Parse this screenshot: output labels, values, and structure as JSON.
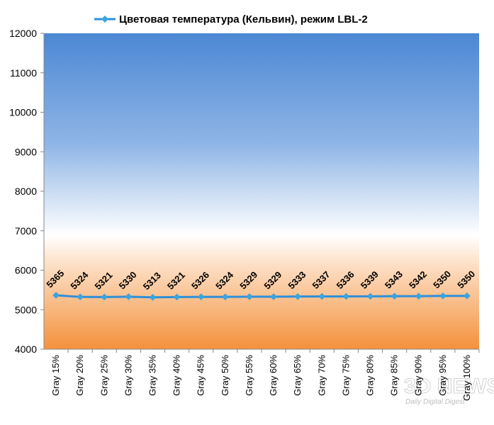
{
  "chart_data": {
    "type": "line",
    "categories": [
      "Gray 15%",
      "Gray 20%",
      "Gray 25%",
      "Gray 30%",
      "Gray 35%",
      "Gray 40%",
      "Gray 45%",
      "Gray 50%",
      "Gray 55%",
      "Gray 60%",
      "Gray 65%",
      "Gray 70%",
      "Gray 75%",
      "Gray 80%",
      "Gray 85%",
      "Gray 90%",
      "Gray 95%",
      "Gray 100%"
    ],
    "series": [
      {
        "name": "Цветовая температура (Кельвин), режим LBL-2",
        "color": "#2f8fd8",
        "values": [
          5365,
          5324,
          5321,
          5330,
          5313,
          5321,
          5326,
          5324,
          5329,
          5329,
          5333,
          5337,
          5336,
          5339,
          5343,
          5342,
          5350,
          5350
        ]
      }
    ],
    "ylim": [
      4000,
      12000
    ],
    "yticks": [
      4000,
      5000,
      6000,
      7000,
      8000,
      9000,
      10000,
      11000,
      12000
    ],
    "legend": "top",
    "grid": false
  },
  "watermark": {
    "title": "3D NEWS",
    "subtitle": "Daily Digital Digest"
  }
}
